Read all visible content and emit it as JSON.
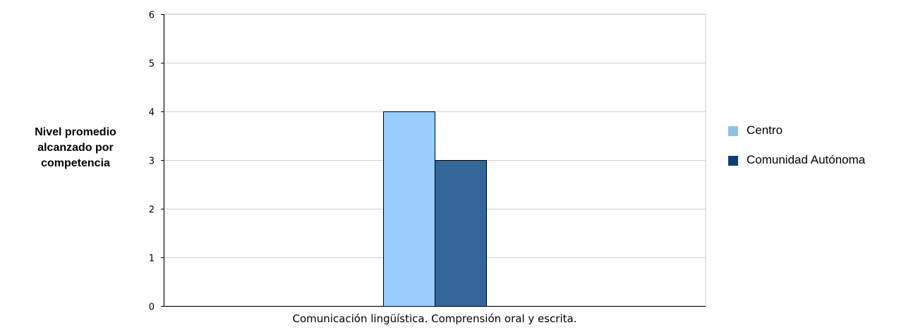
{
  "chart_data": {
    "type": "bar",
    "title": "",
    "xlabel": "",
    "ylabel": "Nivel promedio alcanzado por competencia",
    "ylim": [
      0,
      6
    ],
    "yticks": [
      0,
      1,
      2,
      3,
      4,
      5,
      6
    ],
    "grid": true,
    "legend_position": "right",
    "categories": [
      "Comunicación lingüística. Comprensión oral y escrita."
    ],
    "series": [
      {
        "name": "Centro",
        "values": [
          4
        ],
        "color": "#99CCFF"
      },
      {
        "name": "Comunidad Autónoma",
        "values": [
          3
        ],
        "color": "#336699"
      }
    ],
    "legend": [
      {
        "label": "Centro",
        "color": "#8EC3E6"
      },
      {
        "label": "Comunidad Autónoma",
        "color": "#0B3D7A"
      }
    ]
  }
}
